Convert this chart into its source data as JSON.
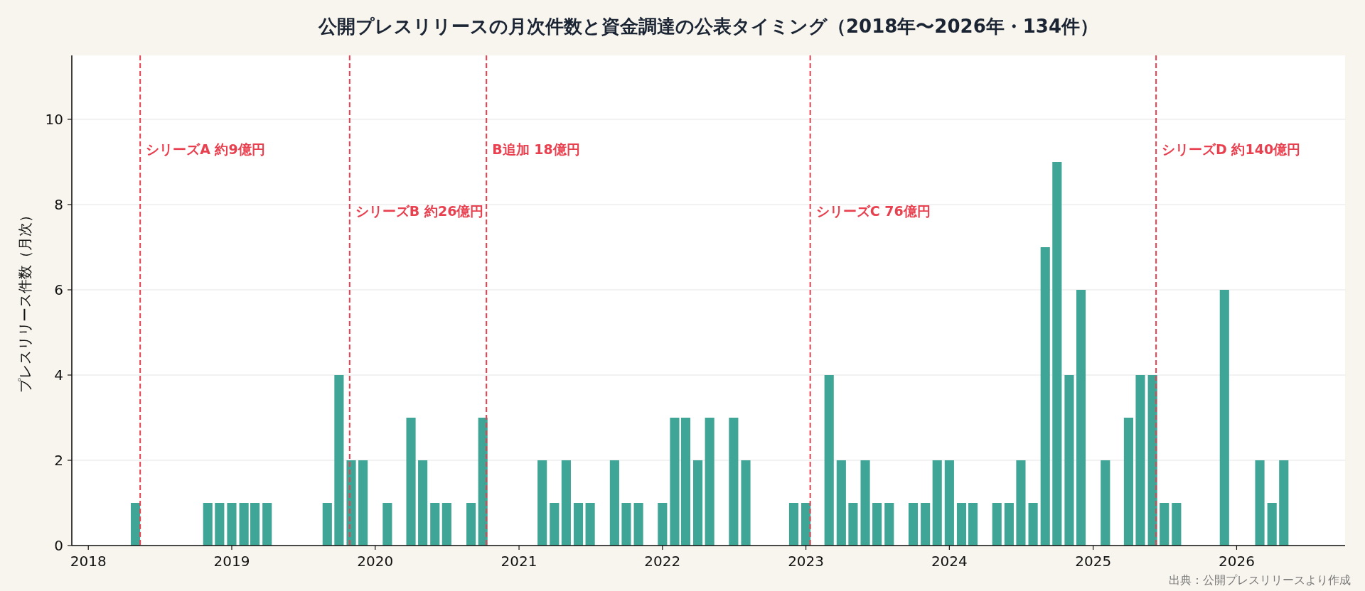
{
  "chart_data": {
    "type": "bar",
    "title": "公開プレスリリースの月次件数と資金調達の公表タイミング（2018年〜2026年・134件）",
    "ylabel": "プレスリリース件数（月次）",
    "annotations": [
      "出典：公開プレスリリースより作成"
    ],
    "x": [
      "2018-05",
      "2018-11",
      "2018-12",
      "2019-01",
      "2019-02",
      "2019-03",
      "2019-04",
      "2019-09",
      "2019-10",
      "2019-11",
      "2019-12",
      "2020-02",
      "2020-04",
      "2020-05",
      "2020-06",
      "2020-07",
      "2020-09",
      "2020-10",
      "2021-03",
      "2021-04",
      "2021-05",
      "2021-06",
      "2021-07",
      "2021-09",
      "2021-10",
      "2021-11",
      "2022-01",
      "2022-02",
      "2022-03",
      "2022-04",
      "2022-05",
      "2022-07",
      "2022-08",
      "2022-12",
      "2023-01",
      "2023-03",
      "2023-04",
      "2023-05",
      "2023-06",
      "2023-07",
      "2023-08",
      "2023-10",
      "2023-11",
      "2023-12",
      "2024-01",
      "2024-02",
      "2024-03",
      "2024-05",
      "2024-06",
      "2024-07",
      "2024-08",
      "2024-09",
      "2024-10",
      "2024-11",
      "2024-12",
      "2025-02",
      "2025-04",
      "2025-05",
      "2025-06",
      "2025-07",
      "2025-08",
      "2025-12",
      "2026-03",
      "2026-04",
      "2026-05"
    ],
    "series": [
      {
        "color": "#3fa596",
        "values": [
          1,
          1,
          1,
          1,
          1,
          1,
          1,
          1,
          4,
          2,
          2,
          1,
          3,
          2,
          1,
          1,
          1,
          3,
          2,
          1,
          2,
          1,
          1,
          2,
          1,
          1,
          1,
          3,
          3,
          2,
          3,
          3,
          2,
          1,
          1,
          4,
          2,
          1,
          2,
          1,
          1,
          1,
          1,
          2,
          2,
          1,
          1,
          1,
          1,
          2,
          1,
          7,
          9,
          4,
          6,
          2,
          3,
          4,
          4,
          1,
          1,
          6,
          2,
          1,
          2
        ]
      }
    ],
    "xlim": [
      "2017-11-20",
      "2026-10-04"
    ],
    "xticks": [
      {
        "value": "2018",
        "label": "2018"
      },
      {
        "value": "2019",
        "label": "2019"
      },
      {
        "value": "2020",
        "label": "2020"
      },
      {
        "value": "2021",
        "label": "2021"
      },
      {
        "value": "2022",
        "label": "2022"
      },
      {
        "value": "2023",
        "label": "2023"
      },
      {
        "value": "2024",
        "label": "2024"
      },
      {
        "value": "2025",
        "label": "2025"
      },
      {
        "value": "2026",
        "label": "2026"
      }
    ],
    "ylim": [
      0,
      11.5
    ],
    "yticks": [
      0,
      2,
      4,
      6,
      8,
      10
    ],
    "grid": "y",
    "ref_lines": [
      {
        "axis": "x",
        "value": "2018-05-13",
        "label": "シリーズA 約9億円",
        "color": "#e8404f",
        "line_style": "dashed"
      },
      {
        "axis": "x",
        "value": "2019-10-28",
        "label": "シリーズB 約26億円",
        "color": "#e8404f",
        "line_style": "dashed"
      },
      {
        "axis": "x",
        "value": "2020-10-10",
        "label": "B追加 18億円",
        "color": "#e8404f",
        "line_style": "dashed"
      },
      {
        "axis": "x",
        "value": "2023-01-12",
        "label": "シリーズC 76億円",
        "color": "#e8404f",
        "line_style": "dashed"
      },
      {
        "axis": "x",
        "value": "2025-06-10",
        "label": "シリーズD 約140億円",
        "color": "#e8404f",
        "line_style": "dashed"
      }
    ]
  }
}
